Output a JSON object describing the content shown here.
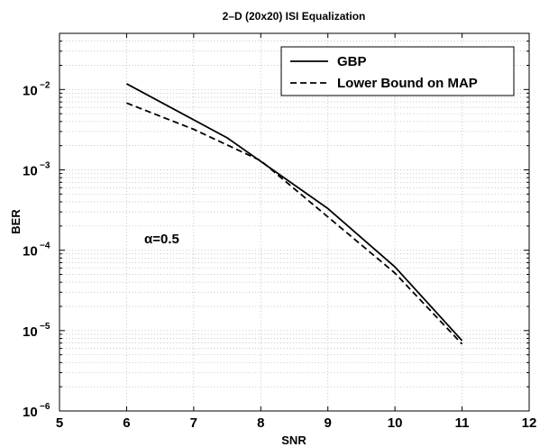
{
  "chart_data": {
    "type": "line",
    "title": "2–D (20x20) ISI Equalization",
    "xlabel": "SNR",
    "ylabel": "BER",
    "xlim": [
      5,
      12
    ],
    "ylim": [
      1e-06,
      0.05
    ],
    "yscale": "log",
    "grid": true,
    "legend_position": "top-right",
    "x_ticks": [
      "5",
      "6",
      "7",
      "8",
      "9",
      "10",
      "11",
      "12"
    ],
    "y_ticks": [
      {
        "base": "10",
        "exp": "−2"
      },
      {
        "base": "10",
        "exp": "−3"
      },
      {
        "base": "10",
        "exp": "−4"
      },
      {
        "base": "10",
        "exp": "−5"
      },
      {
        "base": "10",
        "exp": "−6"
      }
    ],
    "series": [
      {
        "name": "GBP",
        "style": "solid",
        "x": [
          6,
          7.5,
          9,
          10,
          11
        ],
        "y": [
          0.0118,
          0.0025,
          0.00033,
          6.2e-05,
          7.5e-06
        ]
      },
      {
        "name": "Lower Bound on MAP",
        "style": "dashed",
        "x": [
          6,
          7,
          8,
          9,
          10,
          11
        ],
        "y": [
          0.0068,
          0.0032,
          0.0013,
          0.00026,
          5.2e-05,
          6.8e-06
        ]
      }
    ],
    "annotation": "α=0.5"
  }
}
